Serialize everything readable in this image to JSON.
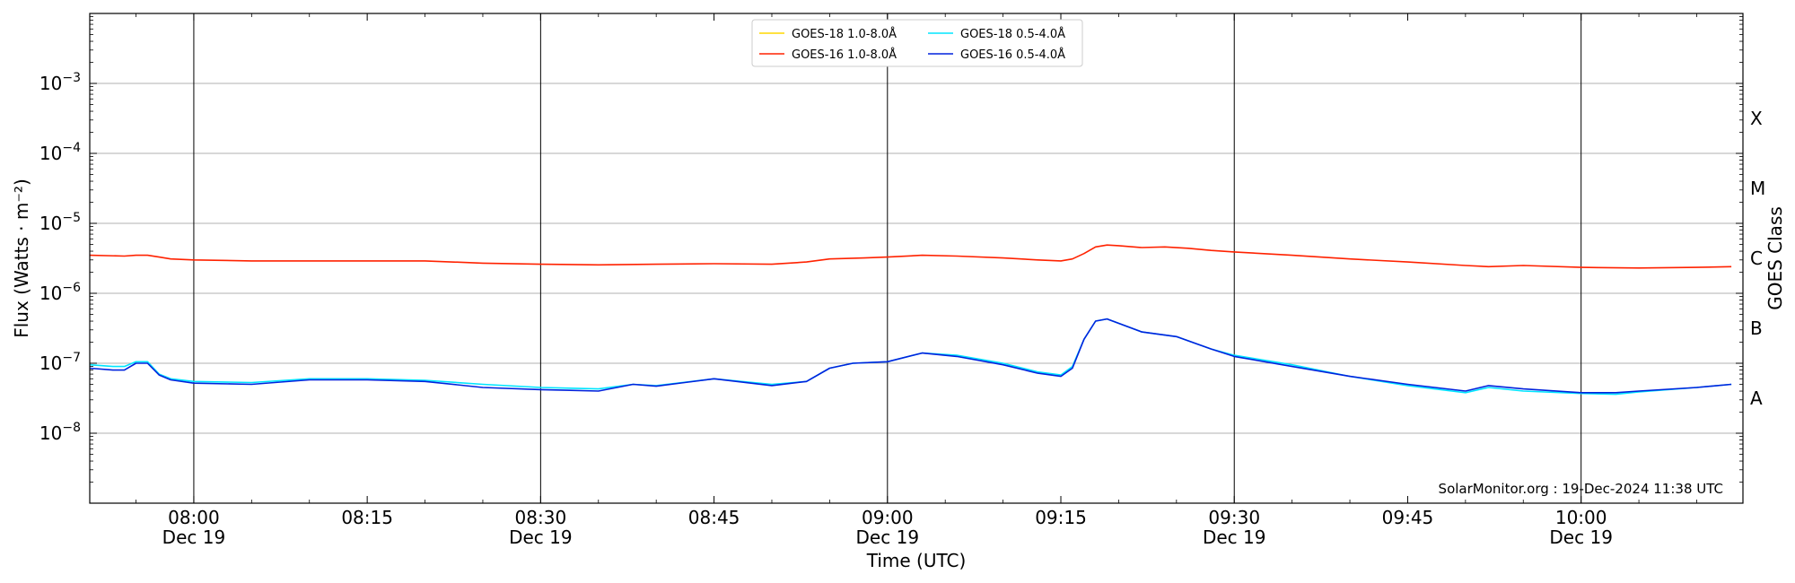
{
  "chart_data": {
    "type": "line",
    "title": "",
    "xlabel": "Time (UTC)",
    "ylabel": "Flux (Watts · m⁻²)",
    "ylabel_right": "GOES Class",
    "yscale": "log",
    "ylim": [
      1e-09,
      0.01
    ],
    "xlim_minutes": [
      -9,
      134
    ],
    "grid": "horizontal",
    "legend_position": "top-center",
    "watermark": "SolarMonitor.org : 19-Dec-2024 11:38 UTC",
    "x_ticks": [
      {
        "m": 0,
        "time": "08:00",
        "date": "Dec 19",
        "major": true
      },
      {
        "m": 15,
        "time": "08:15",
        "date": "",
        "major": false
      },
      {
        "m": 30,
        "time": "08:30",
        "date": "Dec 19",
        "major": true
      },
      {
        "m": 45,
        "time": "08:45",
        "date": "",
        "major": false
      },
      {
        "m": 60,
        "time": "09:00",
        "date": "Dec 19",
        "major": true
      },
      {
        "m": 75,
        "time": "09:15",
        "date": "",
        "major": false
      },
      {
        "m": 90,
        "time": "09:30",
        "date": "Dec 19",
        "major": true
      },
      {
        "m": 105,
        "time": "09:45",
        "date": "",
        "major": false
      },
      {
        "m": 120,
        "time": "10:00",
        "date": "Dec 19",
        "major": true
      }
    ],
    "y_ticks": [
      {
        "exp": -8,
        "base": "10",
        "power": "−8"
      },
      {
        "exp": -7,
        "base": "10",
        "power": "−7"
      },
      {
        "exp": -6,
        "base": "10",
        "power": "−6"
      },
      {
        "exp": -5,
        "base": "10",
        "power": "−5"
      },
      {
        "exp": -4,
        "base": "10",
        "power": "−4"
      },
      {
        "exp": -3,
        "base": "10",
        "power": "−3"
      }
    ],
    "goes_classes": [
      {
        "label": "A",
        "exp": -7.5
      },
      {
        "label": "B",
        "exp": -6.5
      },
      {
        "label": "C",
        "exp": -5.5
      },
      {
        "label": "M",
        "exp": -4.5
      },
      {
        "label": "X",
        "exp": -3.5
      }
    ],
    "series": [
      {
        "name": "GOES-18 1.0-8.0Å",
        "color": "#ffd700",
        "points": []
      },
      {
        "name": "GOES-16 1.0-8.0Å",
        "color": "#ff2200",
        "points": [
          [
            -9,
            3.5e-06
          ],
          [
            -6,
            3.4e-06
          ],
          [
            -5,
            3.5e-06
          ],
          [
            -4,
            3.5e-06
          ],
          [
            -3,
            3.3e-06
          ],
          [
            -2,
            3.1e-06
          ],
          [
            0,
            3e-06
          ],
          [
            5,
            2.9e-06
          ],
          [
            10,
            2.9e-06
          ],
          [
            15,
            2.9e-06
          ],
          [
            20,
            2.9e-06
          ],
          [
            25,
            2.7e-06
          ],
          [
            30,
            2.6e-06
          ],
          [
            35,
            2.55e-06
          ],
          [
            40,
            2.6e-06
          ],
          [
            45,
            2.65e-06
          ],
          [
            50,
            2.6e-06
          ],
          [
            53,
            2.8e-06
          ],
          [
            55,
            3.1e-06
          ],
          [
            58,
            3.2e-06
          ],
          [
            60,
            3.3e-06
          ],
          [
            63,
            3.5e-06
          ],
          [
            66,
            3.4e-06
          ],
          [
            70,
            3.2e-06
          ],
          [
            73,
            3e-06
          ],
          [
            75,
            2.9e-06
          ],
          [
            76,
            3.1e-06
          ],
          [
            77,
            3.7e-06
          ],
          [
            78,
            4.6e-06
          ],
          [
            79,
            4.9e-06
          ],
          [
            80,
            4.8e-06
          ],
          [
            82,
            4.5e-06
          ],
          [
            84,
            4.6e-06
          ],
          [
            86,
            4.4e-06
          ],
          [
            88,
            4.1e-06
          ],
          [
            90,
            3.9e-06
          ],
          [
            95,
            3.5e-06
          ],
          [
            100,
            3.1e-06
          ],
          [
            105,
            2.8e-06
          ],
          [
            110,
            2.5e-06
          ],
          [
            112,
            2.4e-06
          ],
          [
            115,
            2.5e-06
          ],
          [
            120,
            2.35e-06
          ],
          [
            125,
            2.3e-06
          ],
          [
            130,
            2.35e-06
          ],
          [
            133,
            2.4e-06
          ]
        ]
      },
      {
        "name": "GOES-18 0.5-4.0Å",
        "color": "#00e5ff",
        "points": [
          [
            -9,
            9.5e-08
          ],
          [
            -7,
            9e-08
          ],
          [
            -6,
            9e-08
          ],
          [
            -5,
            1.05e-07
          ],
          [
            -4,
            1.05e-07
          ],
          [
            -3,
            7e-08
          ],
          [
            -2,
            6e-08
          ],
          [
            0,
            5.5e-08
          ],
          [
            5,
            5.3e-08
          ],
          [
            10,
            6e-08
          ],
          [
            15,
            6e-08
          ],
          [
            20,
            5.7e-08
          ],
          [
            25,
            5e-08
          ],
          [
            30,
            4.5e-08
          ],
          [
            35,
            4.3e-08
          ],
          [
            38,
            5e-08
          ],
          [
            40,
            4.8e-08
          ],
          [
            45,
            6e-08
          ],
          [
            50,
            5e-08
          ],
          [
            53,
            5.5e-08
          ],
          [
            55,
            8.5e-08
          ],
          [
            57,
            1e-07
          ],
          [
            60,
            1.05e-07
          ],
          [
            63,
            1.4e-07
          ],
          [
            66,
            1.3e-07
          ],
          [
            70,
            1e-07
          ],
          [
            73,
            7.5e-08
          ],
          [
            75,
            6.8e-08
          ],
          [
            76,
            9e-08
          ],
          [
            77,
            2.2e-07
          ],
          [
            78,
            4e-07
          ],
          [
            79,
            4.3e-07
          ],
          [
            82,
            2.8e-07
          ],
          [
            85,
            2.4e-07
          ],
          [
            88,
            1.6e-07
          ],
          [
            90,
            1.3e-07
          ],
          [
            95,
            9.5e-08
          ],
          [
            100,
            6.5e-08
          ],
          [
            105,
            4.8e-08
          ],
          [
            110,
            3.8e-08
          ],
          [
            112,
            4.5e-08
          ],
          [
            115,
            4e-08
          ],
          [
            120,
            3.7e-08
          ],
          [
            123,
            3.6e-08
          ],
          [
            125,
            3.9e-08
          ],
          [
            130,
            4.5e-08
          ],
          [
            133,
            5e-08
          ]
        ]
      },
      {
        "name": "GOES-16 0.5-4.0Å",
        "color": "#0022dd",
        "points": [
          [
            -9,
            8.5e-08
          ],
          [
            -7,
            8e-08
          ],
          [
            -6,
            8e-08
          ],
          [
            -5,
            1e-07
          ],
          [
            -4,
            1e-07
          ],
          [
            -3,
            6.8e-08
          ],
          [
            -2,
            5.8e-08
          ],
          [
            0,
            5.2e-08
          ],
          [
            5,
            5e-08
          ],
          [
            10,
            5.8e-08
          ],
          [
            15,
            5.8e-08
          ],
          [
            20,
            5.5e-08
          ],
          [
            25,
            4.5e-08
          ],
          [
            30,
            4.2e-08
          ],
          [
            35,
            4e-08
          ],
          [
            38,
            5e-08
          ],
          [
            40,
            4.7e-08
          ],
          [
            45,
            6e-08
          ],
          [
            50,
            4.8e-08
          ],
          [
            53,
            5.5e-08
          ],
          [
            55,
            8.5e-08
          ],
          [
            57,
            1e-07
          ],
          [
            60,
            1.05e-07
          ],
          [
            63,
            1.4e-07
          ],
          [
            66,
            1.25e-07
          ],
          [
            70,
            9.5e-08
          ],
          [
            73,
            7.2e-08
          ],
          [
            75,
            6.5e-08
          ],
          [
            76,
            8.5e-08
          ],
          [
            77,
            2.2e-07
          ],
          [
            78,
            4e-07
          ],
          [
            79,
            4.3e-07
          ],
          [
            82,
            2.8e-07
          ],
          [
            85,
            2.4e-07
          ],
          [
            88,
            1.6e-07
          ],
          [
            90,
            1.25e-07
          ],
          [
            95,
            9e-08
          ],
          [
            100,
            6.5e-08
          ],
          [
            105,
            5e-08
          ],
          [
            110,
            4e-08
          ],
          [
            112,
            4.8e-08
          ],
          [
            115,
            4.3e-08
          ],
          [
            120,
            3.8e-08
          ],
          [
            123,
            3.8e-08
          ],
          [
            125,
            4e-08
          ],
          [
            130,
            4.5e-08
          ],
          [
            133,
            5e-08
          ]
        ]
      }
    ]
  }
}
